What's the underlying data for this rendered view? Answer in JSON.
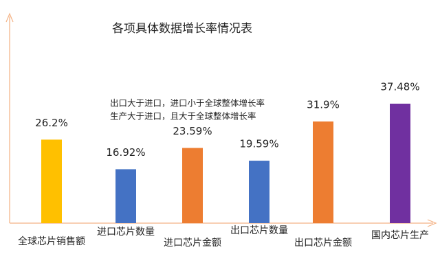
{
  "chart_data": {
    "type": "bar",
    "title": "各项具体数据增长率情况表",
    "annotation": [
      "出口大于进口，进口小于全球整体增长率",
      "生产大于进口，且大于全球整体增长率"
    ],
    "categories": [
      "全球芯片销售额",
      "进口芯片数量",
      "进口芯片金额",
      "出口芯片数量",
      "出口芯片金额",
      "国内芯片生产"
    ],
    "values": [
      26.2,
      16.92,
      23.59,
      19.59,
      31.9,
      37.48
    ],
    "value_labels": [
      "26.2%",
      "16.92%",
      "23.59%",
      "19.59%",
      "31.9%",
      "37.48%"
    ],
    "colors": [
      "#ffc000",
      "#4472c4",
      "#ed7d31",
      "#4472c4",
      "#ed7d31",
      "#7030a0"
    ]
  }
}
